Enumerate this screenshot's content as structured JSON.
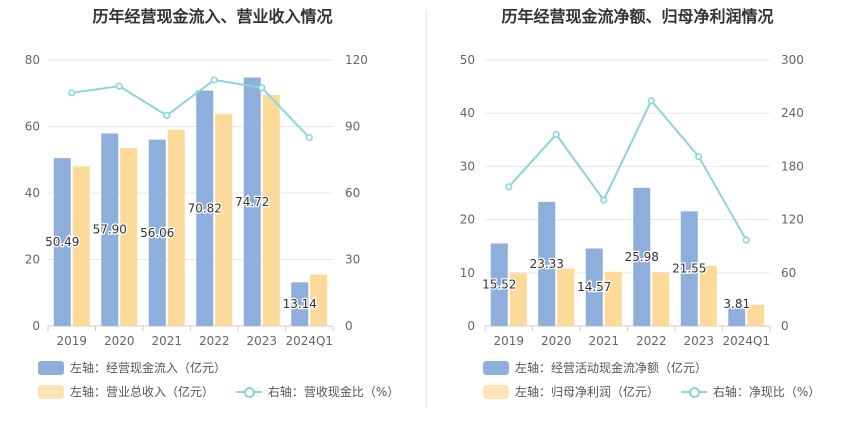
{
  "chart_data": [
    {
      "type": "bar",
      "title": "历年经营现金流入、营业收入情况",
      "categories": [
        "2019",
        "2020",
        "2021",
        "2022",
        "2023",
        "2024Q1"
      ],
      "left_axis": {
        "ylim": [
          0,
          80
        ],
        "ticks": [
          0,
          20,
          40,
          60,
          80
        ]
      },
      "right_axis": {
        "ylim": [
          0,
          120
        ],
        "ticks": [
          0,
          30,
          60,
          90,
          120
        ]
      },
      "grid": true,
      "legend_position": "bottom",
      "series": [
        {
          "name": "左轴：经营现金流入（亿元）",
          "kind": "bar",
          "axis": "left",
          "color": "#8eaedc",
          "values": [
            50.49,
            57.9,
            56.06,
            70.82,
            74.72,
            13.14
          ],
          "labels": [
            "50.49",
            "57.90",
            "56.06",
            "70.82",
            "74.72",
            "13.14"
          ]
        },
        {
          "name": "左轴：营业总收入（亿元）",
          "kind": "bar",
          "axis": "left",
          "color": "#fdd99a",
          "values": [
            48.0,
            53.5,
            59.0,
            63.8,
            69.5,
            15.5
          ]
        },
        {
          "name": "右轴：营收现金比（%）",
          "kind": "line",
          "axis": "right",
          "color": "#8dd3dc",
          "values": [
            105.2,
            108.2,
            95.0,
            111.0,
            107.5,
            85.0
          ]
        }
      ]
    },
    {
      "type": "bar",
      "title": "历年经营现金流净额、归母净利润情况",
      "categories": [
        "2019",
        "2020",
        "2021",
        "2022",
        "2023",
        "2024Q1"
      ],
      "left_axis": {
        "ylim": [
          0,
          50
        ],
        "ticks": [
          0,
          10,
          20,
          30,
          40,
          50
        ]
      },
      "right_axis": {
        "ylim": [
          0,
          300
        ],
        "ticks": [
          0,
          60,
          120,
          180,
          240,
          300
        ]
      },
      "grid": true,
      "legend_position": "bottom",
      "series": [
        {
          "name": "左轴：经营活动现金流净额（亿元）",
          "kind": "bar",
          "axis": "left",
          "color": "#8eaedc",
          "values": [
            15.52,
            23.33,
            14.57,
            25.98,
            21.55,
            3.81
          ],
          "labels": [
            "15.52",
            "23.33",
            "14.57",
            "25.98",
            "21.55",
            "3.81"
          ]
        },
        {
          "name": "左轴：归母净利润（亿元）",
          "kind": "bar",
          "axis": "left",
          "color": "#fdd99a",
          "values": [
            9.9,
            10.8,
            10.2,
            10.1,
            11.3,
            4.0
          ]
        },
        {
          "name": "右轴：净现比（%）",
          "kind": "line",
          "axis": "right",
          "color": "#8dd3dc",
          "values": [
            157,
            216,
            142,
            254,
            191,
            97
          ]
        }
      ]
    }
  ]
}
